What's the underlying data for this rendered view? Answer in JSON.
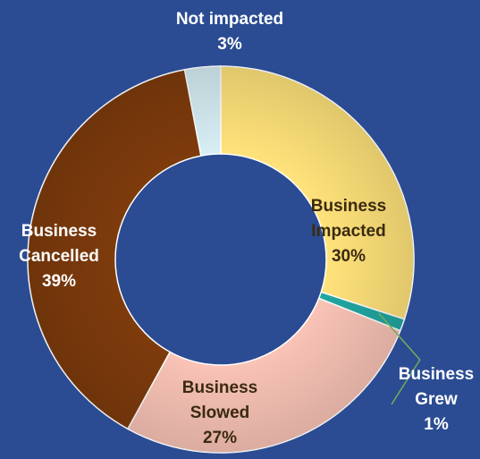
{
  "chart_data": {
    "type": "pie",
    "donut": true,
    "start_angle_deg": 0,
    "direction": "clockwise",
    "slices": [
      {
        "label_lines": [
          "Business",
          "Impacted",
          "30%"
        ],
        "value": 30,
        "color": "#FFE27A"
      },
      {
        "label_lines": [
          "Business",
          "Grew",
          "1%"
        ],
        "value": 1,
        "color": "#21A7A2"
      },
      {
        "label_lines": [
          "Business",
          "Slowed",
          "27%"
        ],
        "value": 27,
        "color": "#F9C3B6"
      },
      {
        "label_lines": [
          "Business",
          "Cancelled",
          "39%"
        ],
        "value": 39,
        "color": "#7E3B0C"
      },
      {
        "label_lines": [
          "Not impacted",
          "3%"
        ],
        "value": 3,
        "color": "#D6EEF4"
      }
    ],
    "background": "#2B4C92",
    "legend": "none"
  }
}
